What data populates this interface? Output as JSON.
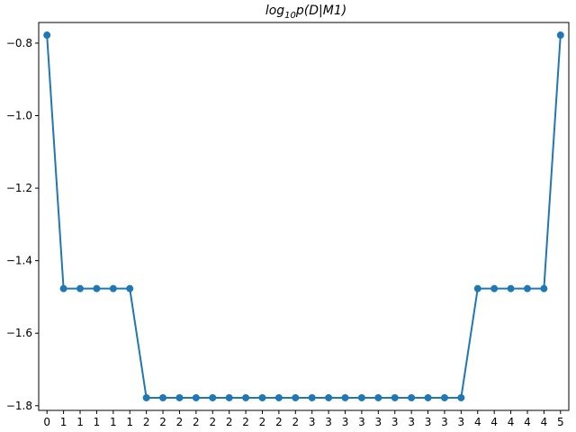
{
  "chart_data": {
    "type": "line",
    "title": {
      "prefix": "log",
      "subscript": "10",
      "suffix": "p(D|M1)"
    },
    "xlabel": "",
    "ylabel": "",
    "categories": [
      "0",
      "1",
      "1",
      "1",
      "1",
      "1",
      "2",
      "2",
      "2",
      "2",
      "2",
      "2",
      "2",
      "2",
      "2",
      "2",
      "3",
      "3",
      "3",
      "3",
      "3",
      "3",
      "3",
      "3",
      "3",
      "3",
      "4",
      "4",
      "4",
      "4",
      "4",
      "5"
    ],
    "series": [
      {
        "values": [
          -0.778,
          -1.477,
          -1.477,
          -1.477,
          -1.477,
          -1.477,
          -1.778,
          -1.778,
          -1.778,
          -1.778,
          -1.778,
          -1.778,
          -1.778,
          -1.778,
          -1.778,
          -1.778,
          -1.778,
          -1.778,
          -1.778,
          -1.778,
          -1.778,
          -1.778,
          -1.778,
          -1.778,
          -1.778,
          -1.778,
          -1.477,
          -1.477,
          -1.477,
          -1.477,
          -1.477,
          -0.778
        ],
        "color": "#1f77b4",
        "marker": "circle"
      }
    ],
    "yticks": [
      -1.8,
      -1.6,
      -1.4,
      -1.2,
      -1.0,
      -0.8
    ],
    "ytick_labels": [
      "−1.8",
      "−1.6",
      "−1.4",
      "−1.2",
      "−1.0",
      "−0.8"
    ],
    "ylim": [
      -1.8129,
      -0.7431
    ],
    "grid": false,
    "legend": false
  }
}
